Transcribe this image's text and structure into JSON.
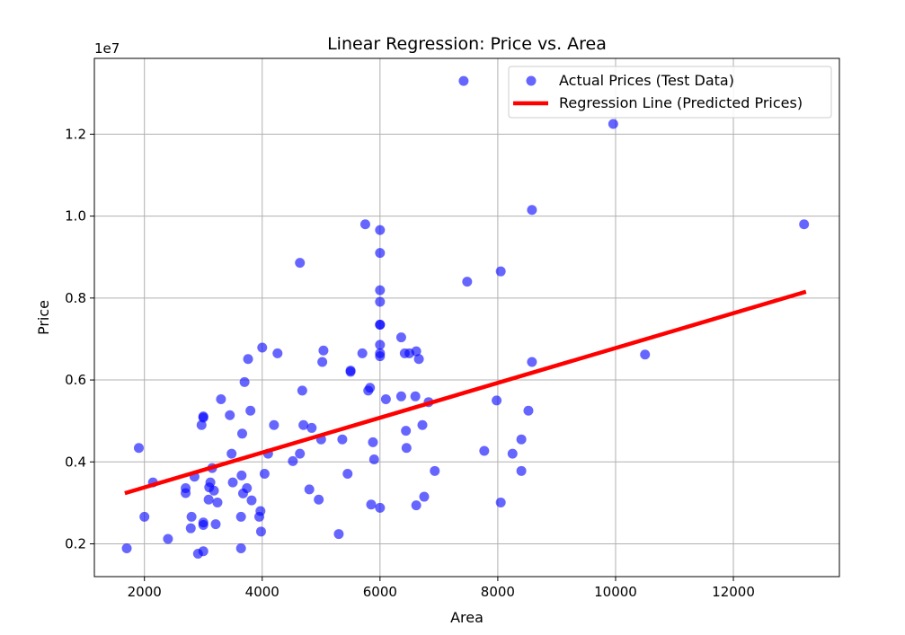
{
  "chart_data": {
    "type": "scatter",
    "title": "Linear Regression: Price vs. Area",
    "xlabel": "Area",
    "ylabel": "Price",
    "y_offset_label": "1e7",
    "xlim": [
      1150,
      13800
    ],
    "ylim": [
      1200000,
      13850000
    ],
    "xticks": [
      2000,
      4000,
      6000,
      8000,
      10000,
      12000
    ],
    "xtick_labels": [
      "2000",
      "4000",
      "6000",
      "8000",
      "10000",
      "12000"
    ],
    "yticks": [
      2000000,
      4000000,
      6000000,
      8000000,
      10000000,
      12000000
    ],
    "ytick_labels": [
      "0.2",
      "0.4",
      "0.6",
      "0.8",
      "1.0",
      "1.2"
    ],
    "grid": true,
    "legend_position": "top-right",
    "series": [
      {
        "name": "Actual Prices (Test Data)",
        "kind": "scatter",
        "color": "#0000ff",
        "opacity": 0.6,
        "points": [
          [
            1700,
            1890000
          ],
          [
            1905,
            4340000
          ],
          [
            2000,
            2660000
          ],
          [
            2145,
            3500000
          ],
          [
            2400,
            2120000
          ],
          [
            2700,
            3240000
          ],
          [
            2700,
            3360000
          ],
          [
            2787,
            2380000
          ],
          [
            2800,
            2660000
          ],
          [
            2850,
            3640000
          ],
          [
            2910,
            1760000
          ],
          [
            2970,
            4900000
          ],
          [
            3000,
            5110000
          ],
          [
            3000,
            5080000
          ],
          [
            3000,
            2520000
          ],
          [
            3000,
            2460000
          ],
          [
            3000,
            1820000
          ],
          [
            3090,
            3080000
          ],
          [
            3100,
            3380000
          ],
          [
            3120,
            3500000
          ],
          [
            3150,
            3850000
          ],
          [
            3180,
            3300000
          ],
          [
            3210,
            2480000
          ],
          [
            3240,
            3010000
          ],
          [
            3300,
            5530000
          ],
          [
            3450,
            5140000
          ],
          [
            3480,
            4200000
          ],
          [
            3500,
            3500000
          ],
          [
            3640,
            1890000
          ],
          [
            3640,
            2660000
          ],
          [
            3650,
            3670000
          ],
          [
            3660,
            4690000
          ],
          [
            3675,
            3230000
          ],
          [
            3700,
            5950000
          ],
          [
            3740,
            3360000
          ],
          [
            3760,
            6510000
          ],
          [
            3800,
            5250000
          ],
          [
            3820,
            3060000
          ],
          [
            3950,
            2660000
          ],
          [
            3970,
            2800000
          ],
          [
            3980,
            2300000
          ],
          [
            4000,
            6790000
          ],
          [
            4040,
            3710000
          ],
          [
            4100,
            4200000
          ],
          [
            4200,
            4900000
          ],
          [
            4260,
            6650000
          ],
          [
            4520,
            4020000
          ],
          [
            4640,
            4200000
          ],
          [
            4640,
            8860000
          ],
          [
            4680,
            5740000
          ],
          [
            4700,
            4900000
          ],
          [
            4800,
            3330000
          ],
          [
            4840,
            4830000
          ],
          [
            4960,
            3080000
          ],
          [
            5000,
            4550000
          ],
          [
            5020,
            6440000
          ],
          [
            5040,
            6720000
          ],
          [
            5300,
            2240000
          ],
          [
            5360,
            4550000
          ],
          [
            5450,
            3710000
          ],
          [
            5500,
            6230000
          ],
          [
            5500,
            6200000
          ],
          [
            5700,
            6650000
          ],
          [
            5750,
            9800000
          ],
          [
            5800,
            5740000
          ],
          [
            5830,
            5810000
          ],
          [
            5850,
            2960000
          ],
          [
            5880,
            4480000
          ],
          [
            5900,
            4060000
          ],
          [
            6000,
            2880000
          ],
          [
            6000,
            6580000
          ],
          [
            6000,
            6650000
          ],
          [
            6000,
            6860000
          ],
          [
            6000,
            7350000
          ],
          [
            6000,
            7350000
          ],
          [
            6000,
            7910000
          ],
          [
            6000,
            8190000
          ],
          [
            6000,
            9100000
          ],
          [
            6000,
            9660000
          ],
          [
            6100,
            5530000
          ],
          [
            6360,
            5600000
          ],
          [
            6360,
            7040000
          ],
          [
            6420,
            6650000
          ],
          [
            6440,
            4760000
          ],
          [
            6450,
            4340000
          ],
          [
            6500,
            6650000
          ],
          [
            6600,
            5600000
          ],
          [
            6615,
            6700000
          ],
          [
            6615,
            2940000
          ],
          [
            6660,
            6510000
          ],
          [
            6720,
            4900000
          ],
          [
            6750,
            3150000
          ],
          [
            6825,
            5460000
          ],
          [
            6930,
            3780000
          ],
          [
            7420,
            13300000
          ],
          [
            7480,
            8400000
          ],
          [
            7770,
            4270000
          ],
          [
            7980,
            5500000
          ],
          [
            8050,
            8650000
          ],
          [
            8050,
            3010000
          ],
          [
            8250,
            4200000
          ],
          [
            8400,
            4550000
          ],
          [
            8400,
            3780000
          ],
          [
            8520,
            5250000
          ],
          [
            8580,
            10150000
          ],
          [
            8580,
            6440000
          ],
          [
            9960,
            12250000
          ],
          [
            10500,
            6620000
          ],
          [
            13200,
            9800000
          ]
        ]
      },
      {
        "name": "Regression Line (Predicted Prices)",
        "kind": "line",
        "color": "#ff0000",
        "x": [
          1700,
          13200
        ],
        "y": [
          3250000,
          8140000
        ]
      }
    ]
  }
}
